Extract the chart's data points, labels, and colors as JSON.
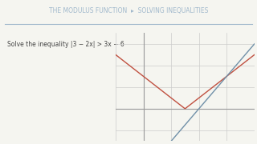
{
  "header": "THE MODULUS FUNCTION  ▸  SOLVING INEQUALITIES",
  "problem_text": "Solve the inequality |3 − 2x| > 3x − 6",
  "bg_color": "#f5f5f0",
  "header_color": "#a0b8cc",
  "text_color": "#444444",
  "grid_color": "#cccccc",
  "axis_color": "#999999",
  "modulus_color": "#c05040",
  "line_color": "#7090a8",
  "xlim": [
    -1,
    4
  ],
  "ylim": [
    -3,
    7
  ]
}
